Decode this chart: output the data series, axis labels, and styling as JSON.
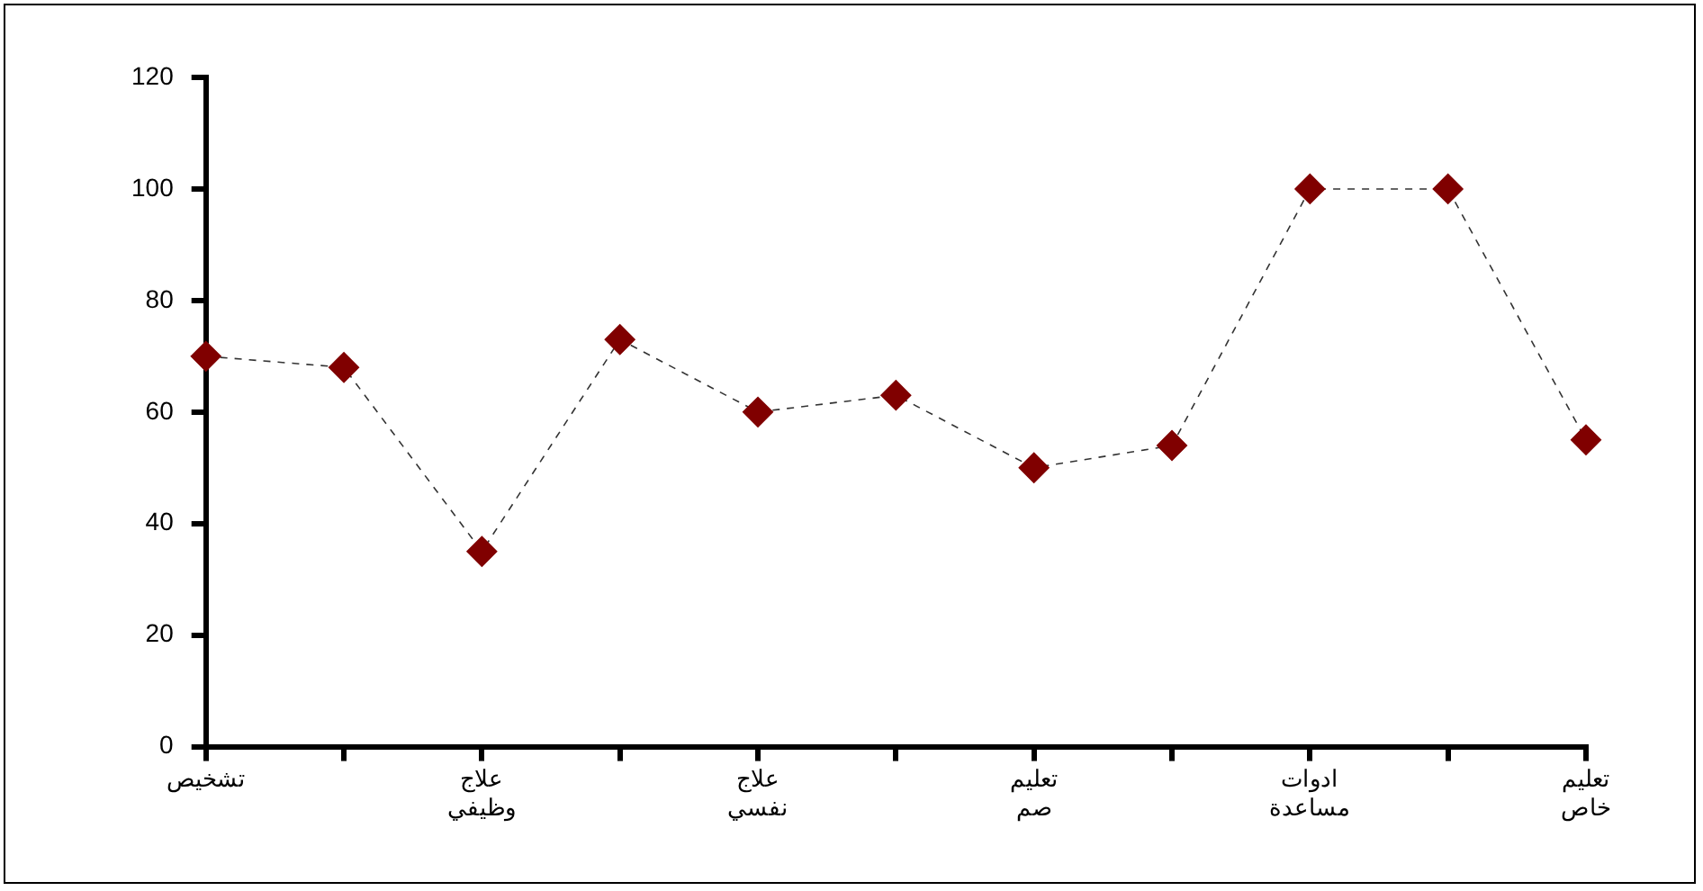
{
  "chart_data": {
    "type": "line",
    "categories": [
      "تشخيص",
      null,
      "علاج وظيفي",
      null,
      "علاج نفسي",
      null,
      "تعليم صم",
      null,
      "ادوات مساعدة",
      null,
      "تعليم خاص"
    ],
    "series": [
      {
        "color": "#800000",
        "values": [
          70,
          68,
          35,
          73,
          60,
          63,
          50,
          54,
          100,
          100,
          55
        ]
      }
    ],
    "ylim": [
      0,
      120
    ],
    "yticks": [
      0,
      20,
      40,
      60,
      80,
      100,
      120
    ],
    "grid": false,
    "legend": false,
    "marker": "diamond",
    "line_style": "dashed"
  }
}
